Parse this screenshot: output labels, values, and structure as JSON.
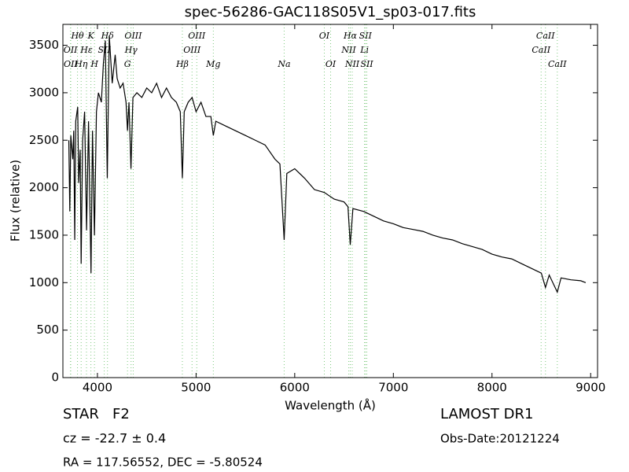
{
  "chart_data": {
    "type": "line",
    "title": "spec-56286-GAC118S05V1_sp03-017.fits",
    "x_label": "Wavelength (Å)",
    "y_label": "Flux (relative)",
    "xlim": [
      3650,
      9070
    ],
    "ylim": [
      0,
      3720
    ],
    "xticks": [
      4000,
      5000,
      6000,
      7000,
      8000,
      9000
    ],
    "yticks": [
      0,
      500,
      1000,
      1500,
      2000,
      2500,
      3000,
      3500
    ],
    "x": [
      3710,
      3720,
      3730,
      3750,
      3760,
      3770,
      3780,
      3800,
      3810,
      3825,
      3835,
      3850,
      3870,
      3890,
      3910,
      3935,
      3950,
      3970,
      3990,
      4010,
      4040,
      4060,
      4080,
      4100,
      4120,
      4150,
      4180,
      4200,
      4230,
      4260,
      4290,
      4305,
      4320,
      4340,
      4360,
      4400,
      4450,
      4500,
      4550,
      4600,
      4650,
      4700,
      4750,
      4800,
      4840,
      4861,
      4880,
      4920,
      4960,
      5000,
      5050,
      5100,
      5150,
      5175,
      5200,
      5300,
      5400,
      5500,
      5600,
      5700,
      5800,
      5850,
      5893,
      5920,
      6000,
      6100,
      6200,
      6300,
      6400,
      6500,
      6540,
      6563,
      6590,
      6700,
      6800,
      6900,
      7000,
      7100,
      7200,
      7300,
      7400,
      7500,
      7600,
      7700,
      7800,
      7900,
      8000,
      8100,
      8200,
      8300,
      8400,
      8500,
      8542,
      8580,
      8662,
      8700,
      8800,
      8900,
      8950
    ],
    "series": [
      {
        "name": "flux",
        "color": "#000000",
        "values": [
          2500,
          1750,
          2550,
          2300,
          2600,
          1450,
          2700,
          2850,
          2050,
          2400,
          1200,
          2500,
          2800,
          1550,
          2700,
          1100,
          2600,
          1500,
          2800,
          3000,
          2900,
          3300,
          3550,
          2100,
          3600,
          3100,
          3400,
          3150,
          3050,
          3100,
          2900,
          2600,
          2900,
          2200,
          2950,
          3000,
          2950,
          3050,
          3000,
          3100,
          2950,
          3050,
          2950,
          2900,
          2800,
          2100,
          2800,
          2900,
          2950,
          2800,
          2900,
          2750,
          2750,
          2550,
          2700,
          2650,
          2600,
          2550,
          2500,
          2450,
          2300,
          2250,
          1450,
          2150,
          2200,
          2100,
          1980,
          1950,
          1880,
          1850,
          1800,
          1400,
          1780,
          1750,
          1700,
          1650,
          1620,
          1580,
          1560,
          1540,
          1500,
          1470,
          1450,
          1410,
          1380,
          1350,
          1300,
          1270,
          1250,
          1200,
          1150,
          1100,
          950,
          1080,
          900,
          1050,
          1030,
          1020,
          1000
        ]
      }
    ],
    "line_color": "#7fc97f",
    "lines": [
      {
        "label": "Hθ",
        "wavelength": 3798,
        "row": 0
      },
      {
        "label": "K",
        "wavelength": 3934,
        "row": 0
      },
      {
        "label": "Hδ",
        "wavelength": 4102,
        "row": 0
      },
      {
        "label": "OIII",
        "wavelength": 4363,
        "row": 0
      },
      {
        "label": "OIII",
        "wavelength": 5007,
        "row": 0
      },
      {
        "label": "OI",
        "wavelength": 6300,
        "row": 0
      },
      {
        "label": "Hα",
        "wavelength": 6563,
        "row": 0
      },
      {
        "label": "SII",
        "wavelength": 6717,
        "row": 0
      },
      {
        "label": "CaII",
        "wavelength": 8542,
        "row": 0
      },
      {
        "label": "OII",
        "wavelength": 3727,
        "row": 1
      },
      {
        "label": "Hε",
        "wavelength": 3889,
        "row": 1
      },
      {
        "label": "SII",
        "wavelength": 4069,
        "row": 1
      },
      {
        "label": "Hγ",
        "wavelength": 4341,
        "row": 1
      },
      {
        "label": "OIII",
        "wavelength": 4959,
        "row": 1
      },
      {
        "label": "NII",
        "wavelength": 6548,
        "row": 1
      },
      {
        "label": "Li",
        "wavelength": 6708,
        "row": 1
      },
      {
        "label": "CaII",
        "wavelength": 8498,
        "row": 1
      },
      {
        "label": "OII",
        "wavelength": 3729,
        "row": 2
      },
      {
        "label": "Hη",
        "wavelength": 3835,
        "row": 2
      },
      {
        "label": "H",
        "wavelength": 3970,
        "row": 2
      },
      {
        "label": "G",
        "wavelength": 4305,
        "row": 2
      },
      {
        "label": "Hβ",
        "wavelength": 4861,
        "row": 2
      },
      {
        "label": "Mg",
        "wavelength": 5175,
        "row": 2
      },
      {
        "label": "Na",
        "wavelength": 5893,
        "row": 2
      },
      {
        "label": "OI",
        "wavelength": 6364,
        "row": 2
      },
      {
        "label": "NII",
        "wavelength": 6583,
        "row": 2
      },
      {
        "label": "SII",
        "wavelength": 6731,
        "row": 2
      },
      {
        "label": "CaII",
        "wavelength": 8662,
        "row": 2
      }
    ],
    "footer": {
      "class_text": "STAR   F2",
      "survey": "LAMOST DR1",
      "redshift": "cz = -22.7 ± 0.4",
      "obs_date": "Obs-Date:20121224",
      "coords": "RA = 117.56552, DEC = -5.80524"
    }
  }
}
